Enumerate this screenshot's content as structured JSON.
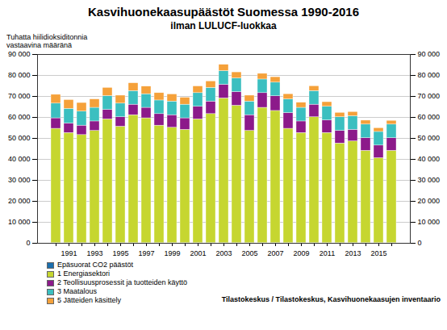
{
  "chart_data": {
    "type": "bar",
    "title": "Kasvihuonekaasupäästöt Suomessa 1990-2016",
    "subtitle": "ilman LULUCF-luokkaa",
    "y_label": "Tuhatta hiilidioksiditonnia vastaavina määränä",
    "caption": "Tilastokeskus / Tilastokeskus, Kasvihuonekaasujen inventaario",
    "categories": [
      null,
      "1991",
      null,
      "1993",
      null,
      "1995",
      null,
      "1997",
      null,
      "1999",
      null,
      "2001",
      null,
      "2003",
      null,
      "2005",
      null,
      "2007",
      null,
      "2009",
      null,
      "2011",
      null,
      "2013",
      null,
      "2015",
      null
    ],
    "series": [
      {
        "name": "Epäsuorat CO2 päästöt",
        "color": "#1c6fae",
        "values": [
          100,
          100,
          100,
          100,
          100,
          100,
          100,
          100,
          100,
          100,
          100,
          100,
          100,
          100,
          100,
          100,
          100,
          100,
          100,
          100,
          100,
          100,
          100,
          100,
          100,
          100,
          100
        ]
      },
      {
        "name": "1 Energiasektori",
        "color": "#c6d630",
        "values": [
          54500,
          52500,
          51500,
          53500,
          59000,
          55500,
          61000,
          59500,
          56000,
          55000,
          54000,
          59000,
          61500,
          69000,
          65500,
          53500,
          64500,
          63000,
          54500,
          52500,
          60000,
          52500,
          47500,
          48500,
          44000,
          40500,
          44000
        ]
      },
      {
        "name": "2 Teollisuusprosessit ja tuotteiden käyttö",
        "color": "#8c1a8a",
        "values": [
          5000,
          4500,
          4500,
          4500,
          4500,
          4500,
          5000,
          5000,
          5500,
          6000,
          5500,
          6000,
          6000,
          6500,
          6500,
          7500,
          7000,
          7000,
          7500,
          5500,
          6000,
          6000,
          6000,
          5500,
          6000,
          6000,
          6000
        ]
      },
      {
        "name": "3 Maatalous",
        "color": "#3bbfc0",
        "values": [
          7000,
          7000,
          6700,
          6500,
          6600,
          6500,
          6500,
          6500,
          6500,
          6500,
          6500,
          6500,
          6500,
          6500,
          6500,
          6500,
          6500,
          6500,
          6500,
          6500,
          6500,
          6500,
          6500,
          6500,
          6500,
          6500,
          6500
        ]
      },
      {
        "name": "5 Jätteiden käsittely",
        "color": "#f5a13a",
        "values": [
          4200,
          4200,
          4100,
          4000,
          3900,
          3800,
          3700,
          3600,
          3500,
          3400,
          3300,
          3200,
          3100,
          3000,
          2900,
          2800,
          2700,
          2600,
          2500,
          2400,
          2300,
          2200,
          2100,
          2000,
          1900,
          1800,
          1800
        ]
      }
    ],
    "ylim": [
      0,
      90000
    ],
    "yticks": [
      0,
      {
        "value": 10000,
        "label": "10 000"
      },
      {
        "value": 20000,
        "label": "20 000"
      },
      {
        "value": 30000,
        "label": "30 000"
      },
      {
        "value": 40000,
        "label": "40 000"
      },
      {
        "value": 50000,
        "label": "50 000"
      },
      {
        "value": 60000,
        "label": "60 000"
      },
      {
        "value": 70000,
        "label": "70 000"
      },
      {
        "value": 80000,
        "label": "80 000"
      },
      {
        "value": 90000,
        "label": "90 000"
      }
    ],
    "stacked": true,
    "grid": true,
    "legend": "bottom"
  }
}
